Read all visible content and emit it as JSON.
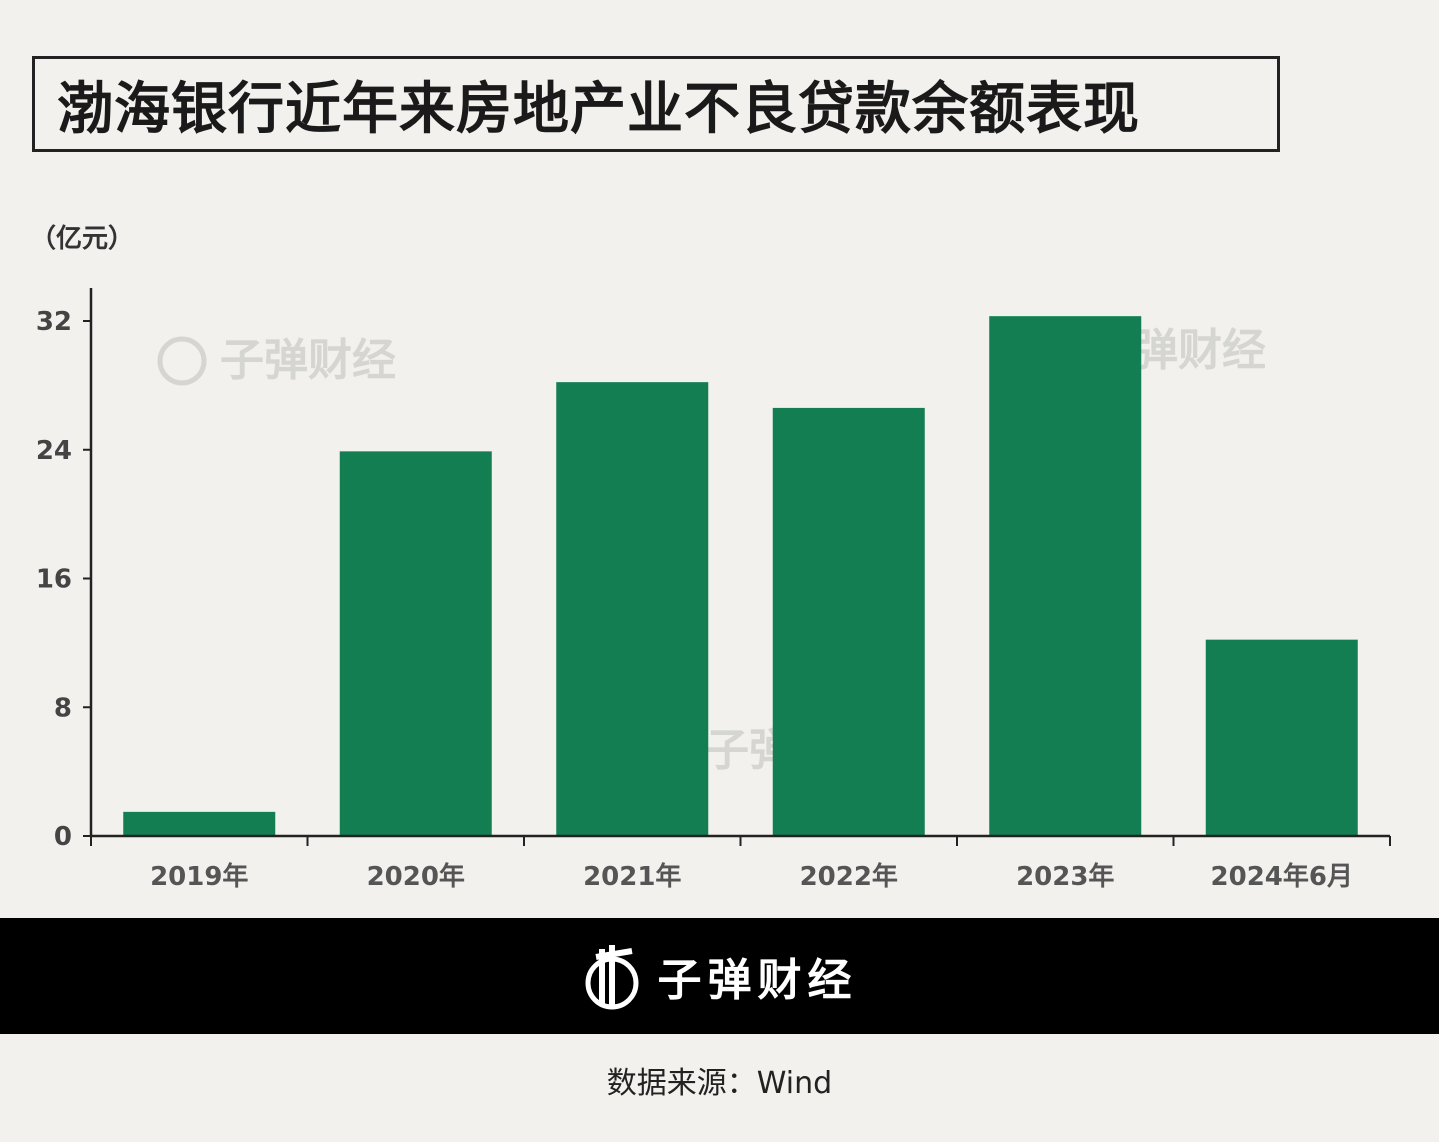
{
  "chart_data": {
    "type": "bar",
    "title": "渤海银行近年来房地产业不良贷款余额表现",
    "ylabel": "（亿元）",
    "xlabel": "",
    "categories": [
      "2019年",
      "2020年",
      "2021年",
      "2022年",
      "2023年",
      "2024年6月"
    ],
    "values": [
      1.5,
      23.9,
      28.2,
      26.6,
      32.3,
      12.2
    ],
    "ylim": [
      0,
      32
    ],
    "yticks": [
      0,
      8,
      16,
      24,
      32
    ],
    "grid": false,
    "bar_color": "#127e52"
  },
  "watermark": "子弹财经",
  "footer": {
    "brand": "子弹财经",
    "source": "数据来源：Wind"
  }
}
